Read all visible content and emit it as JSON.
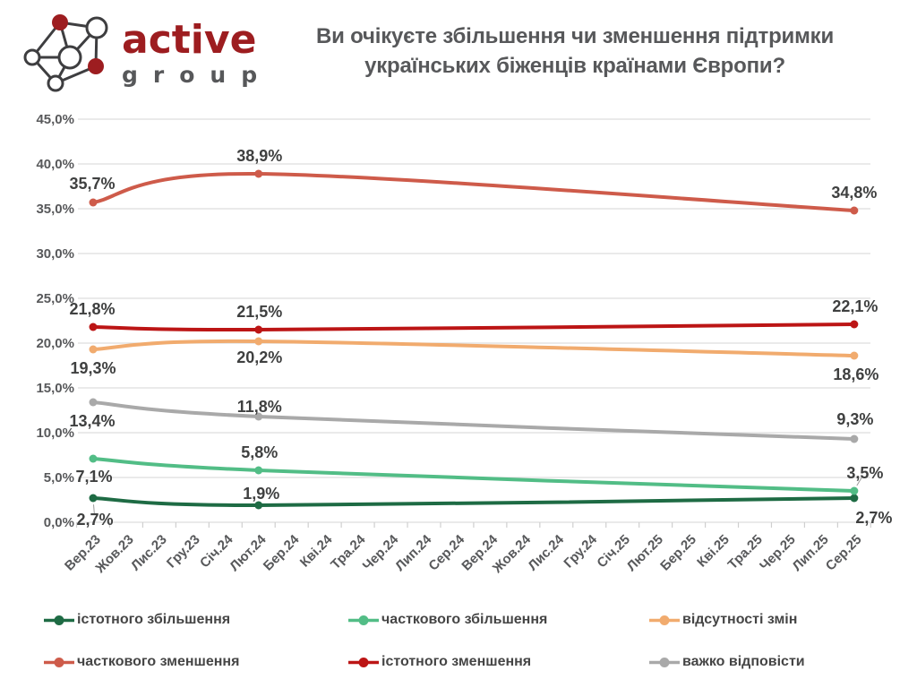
{
  "brand": {
    "name": "active",
    "subname": "group"
  },
  "title": {
    "full": "Ви очікуєте збільшення чи зменшення підтримки українських біженців країнами Європи?",
    "lines": [
      "Ви очікуєте збільшення чи зменшення підтримки",
      "українських біженців країнами Європи?"
    ]
  },
  "chart_data": {
    "type": "line",
    "title": "Ви очікуєте збільшення чи зменшення підтримки українських біженців країнами Європи?",
    "grid": true,
    "legend_position": "bottom",
    "categories": [
      "Вер.23",
      "Жов.23",
      "Лис.23",
      "Гру.23",
      "Січ.24",
      "Лют.24",
      "Бер.24",
      "Кві.24",
      "Тра.24",
      "Чер.24",
      "Лип.24",
      "Сер.24",
      "Вер.24",
      "Жов.24",
      "Лис.24",
      "Гру.24",
      "Січ.25",
      "Лют.25",
      "Бер.25",
      "Кві.25",
      "Тра.25",
      "Чер.25",
      "Лип.25",
      "Сер.25"
    ],
    "point_indices": [
      0,
      5,
      23
    ],
    "sampled_categories": [
      "Вер.23",
      "Лют.24",
      "Сер.25"
    ],
    "y_axis": {
      "min": 0,
      "max": 45,
      "step": 5,
      "ticks": [
        {
          "value": 0,
          "label": "0,0%"
        },
        {
          "value": 5,
          "label": "5,0%"
        },
        {
          "value": 10,
          "label": "10,0%"
        },
        {
          "value": 15,
          "label": "15,0%"
        },
        {
          "value": 20,
          "label": "20,0%"
        },
        {
          "value": 25,
          "label": "25,0%"
        },
        {
          "value": 30,
          "label": "30,0%"
        },
        {
          "value": 35,
          "label": "35,0%"
        },
        {
          "value": 40,
          "label": "40,0%"
        },
        {
          "value": 45,
          "label": "45,0%"
        }
      ]
    },
    "series": [
      {
        "name": "істотного збільшення",
        "color": "#1E6B44",
        "values": [
          2.7,
          1.9,
          2.7
        ],
        "labels": [
          "2,7%",
          "1,9%",
          "2,7%"
        ],
        "label_offsets": [
          [
            2,
            24
          ],
          [
            3,
            -13
          ],
          [
            22,
            22
          ]
        ],
        "leaders": [
          true,
          false,
          false
        ]
      },
      {
        "name": "часткового збільшення",
        "color": "#52BD86",
        "values": [
          7.1,
          5.8,
          3.5
        ],
        "labels": [
          "7,1%",
          "5,8%",
          "3,5%"
        ],
        "label_offsets": [
          [
            1,
            20
          ],
          [
            1,
            -20
          ],
          [
            12,
            -20
          ]
        ],
        "leaders": [
          false,
          false,
          true
        ]
      },
      {
        "name": "відсутності змін",
        "color": "#F1AB6E",
        "values": [
          19.3,
          20.2,
          18.6
        ],
        "labels": [
          "19,3%",
          "20,2%",
          "18,6%"
        ],
        "label_offsets": [
          [
            0,
            21
          ],
          [
            1,
            18
          ],
          [
            2,
            21
          ]
        ],
        "leaders": [
          false,
          false,
          false
        ]
      },
      {
        "name": "часткового зменшення",
        "color": "#CE5B4A",
        "values": [
          35.7,
          38.9,
          34.8
        ],
        "labels": [
          "35,7%",
          "38,9%",
          "34,8%"
        ],
        "label_offsets": [
          [
            -1,
            -21
          ],
          [
            1,
            -20
          ],
          [
            0,
            -20
          ]
        ],
        "leaders": [
          false,
          false,
          false
        ]
      },
      {
        "name": "істотного зменшення",
        "color": "#BC1515",
        "values": [
          21.8,
          21.5,
          22.1
        ],
        "labels": [
          "21,8%",
          "21,5%",
          "22,1%"
        ],
        "label_offsets": [
          [
            -1,
            -20
          ],
          [
            1,
            -20
          ],
          [
            1,
            -20
          ]
        ],
        "leaders": [
          false,
          false,
          false
        ]
      },
      {
        "name": "важко відповісти",
        "color": "#A9A9A9",
        "values": [
          13.4,
          11.8,
          9.3
        ],
        "labels": [
          "13,4%",
          "11,8%",
          "9,3%"
        ],
        "label_offsets": [
          [
            -1,
            21
          ],
          [
            1,
            -11
          ],
          [
            1,
            -22
          ]
        ],
        "leaders": [
          false,
          false,
          false
        ]
      }
    ]
  }
}
